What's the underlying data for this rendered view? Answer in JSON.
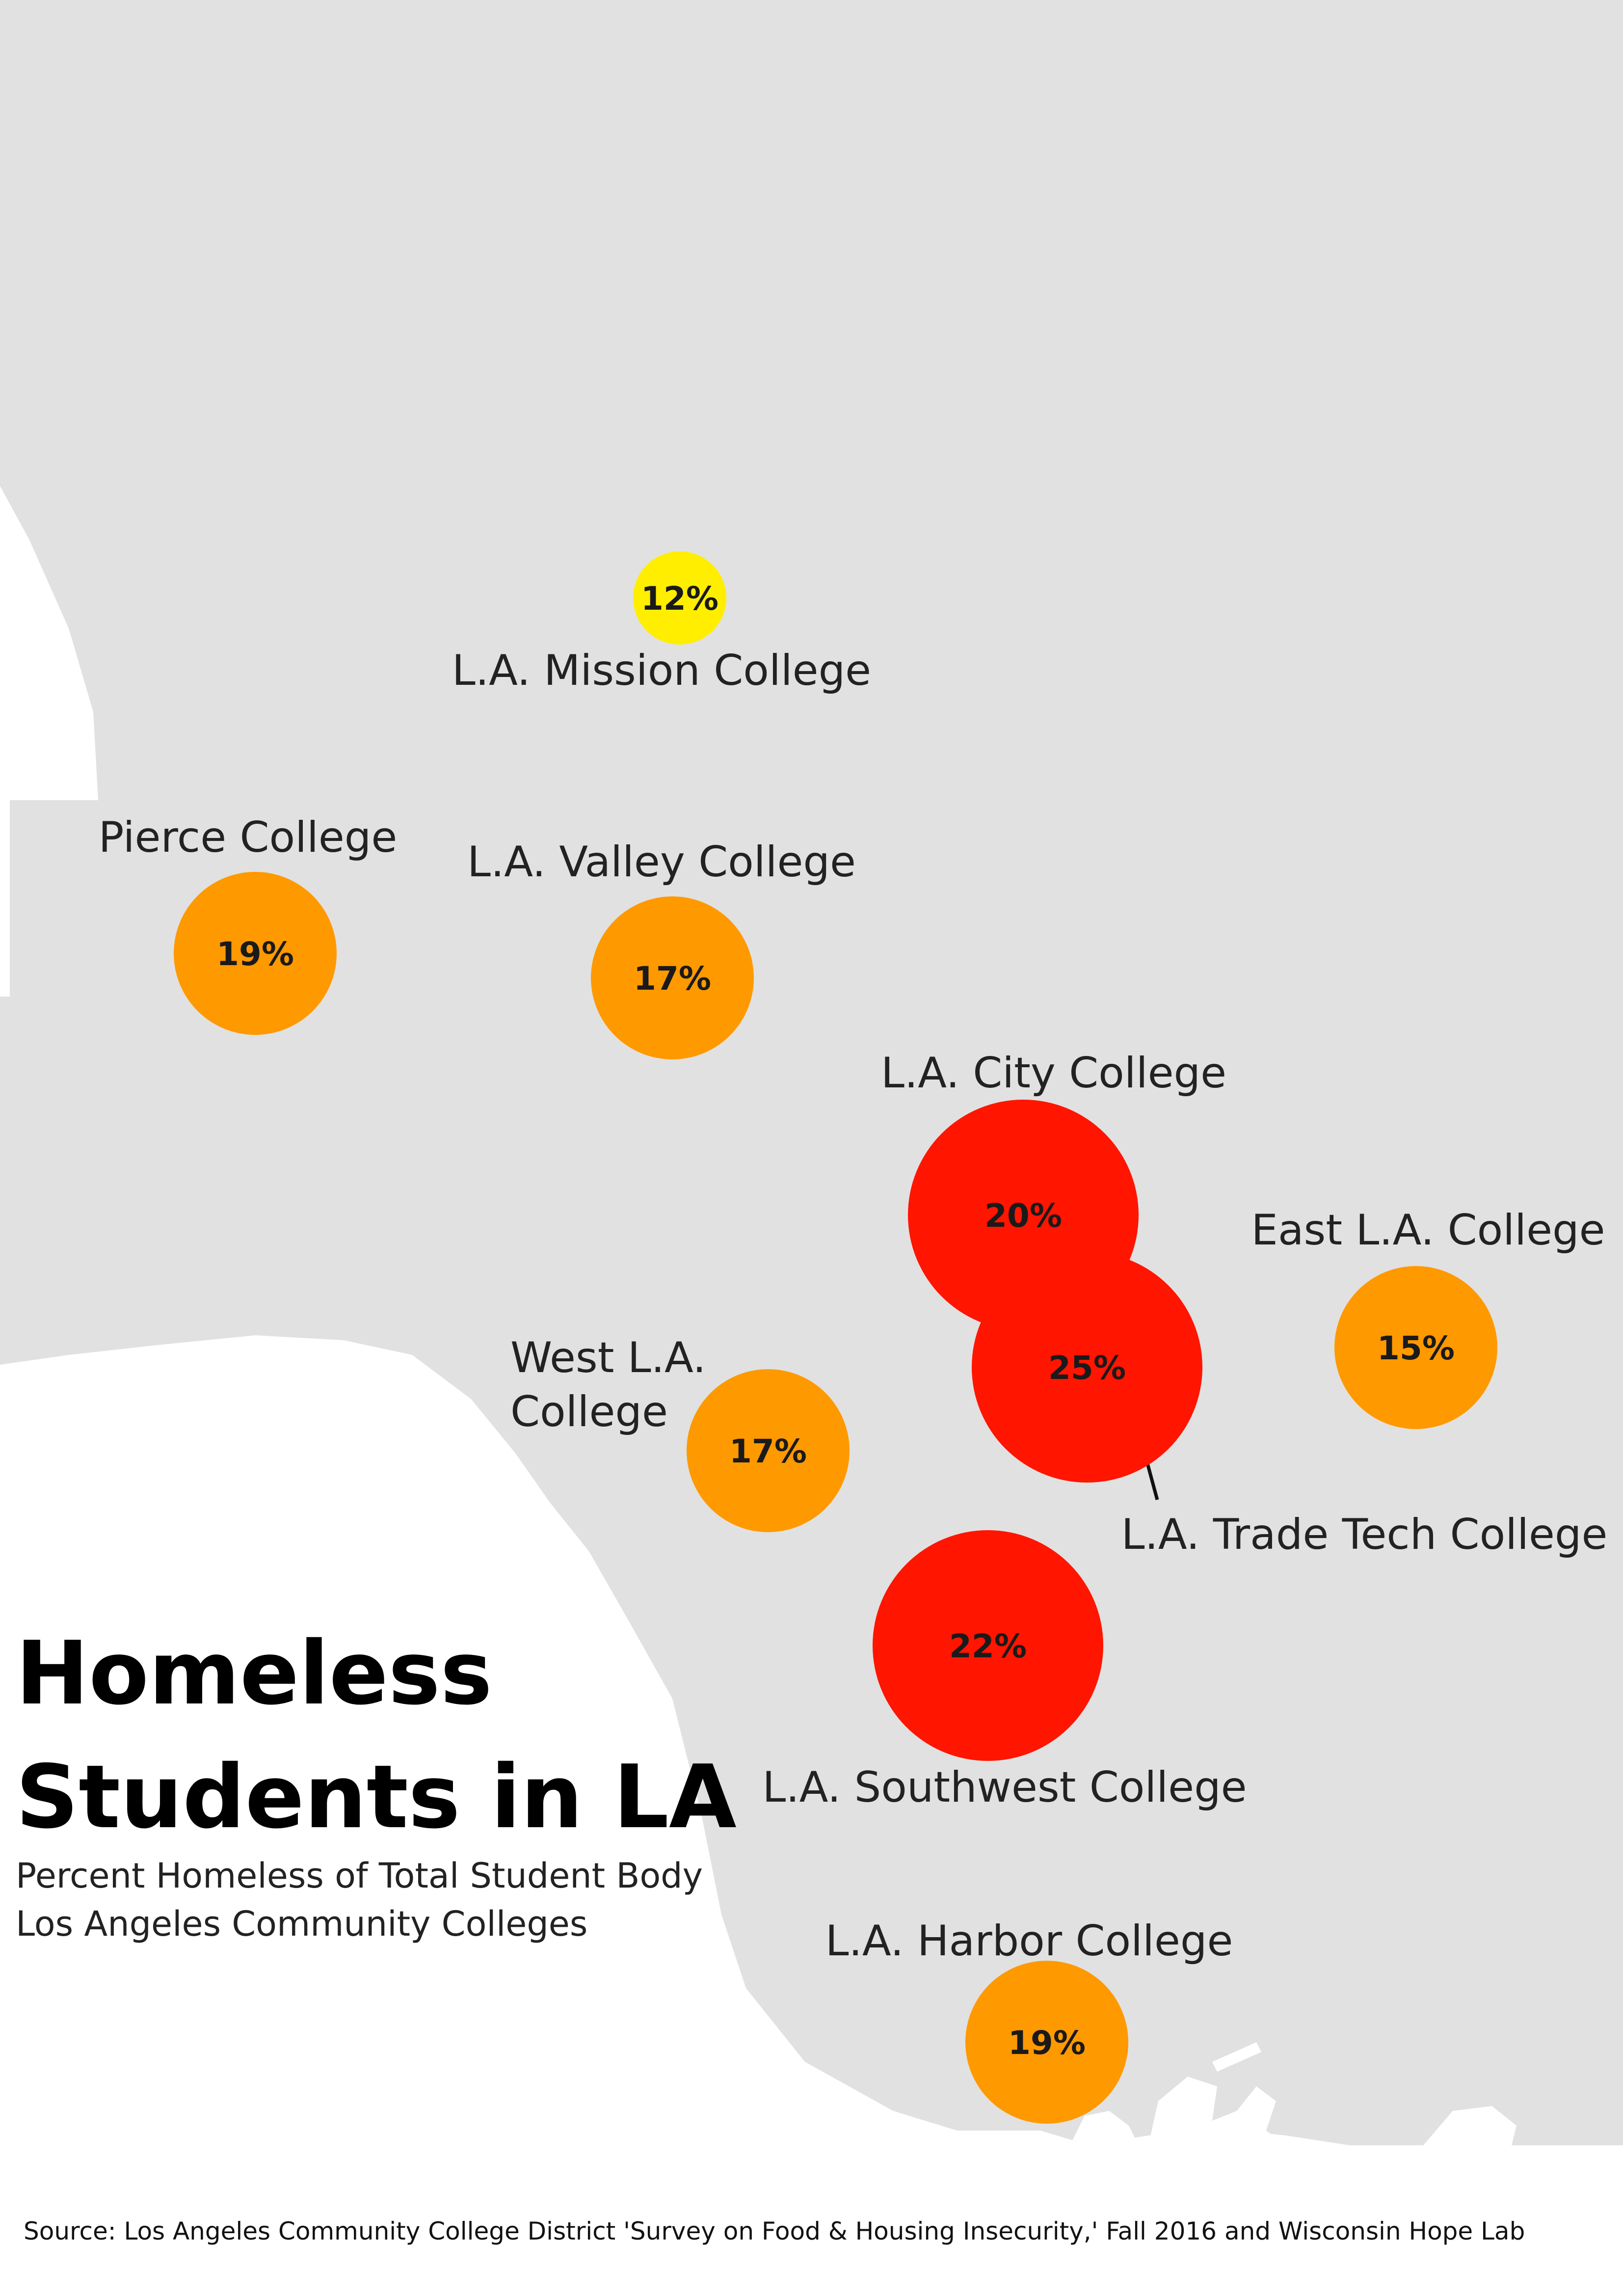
{
  "title_lines": [
    "Homeless",
    "Students in LA"
  ],
  "subtitle_lines": [
    "Percent Homeless of Total Student Body",
    "Los Angeles Community Colleges"
  ],
  "source": "Source: Los Angeles Community College District 'Survey on Food & Housing Insecurity,' Fall 2016  and Wisconsin Hope Lab",
  "colors": {
    "land": "#e1e1e1",
    "water": "#ffffff",
    "low": "#ffee00",
    "mid": "#ff9900",
    "high": "#ff1500"
  },
  "colleges": [
    {
      "name_lines": [
        "L.A. Mission College"
      ],
      "percent": 12,
      "value_label": "12%",
      "tier": "low"
    },
    {
      "name_lines": [
        "Pierce College"
      ],
      "percent": 19,
      "value_label": "19%",
      "tier": "mid"
    },
    {
      "name_lines": [
        "L.A. Valley College"
      ],
      "percent": 17,
      "value_label": "17%",
      "tier": "mid"
    },
    {
      "name_lines": [
        "L.A. City College"
      ],
      "percent": 20,
      "value_label": "20%",
      "tier": "high"
    },
    {
      "name_lines": [
        "East L.A. College"
      ],
      "percent": 15,
      "value_label": "15%",
      "tier": "mid"
    },
    {
      "name_lines": [
        "West L.A.",
        "College"
      ],
      "percent": 17,
      "value_label": "17%",
      "tier": "mid"
    },
    {
      "name_lines": [
        "L.A. Trade Tech College"
      ],
      "percent": 25,
      "value_label": "25%",
      "tier": "high"
    },
    {
      "name_lines": [
        "L.A. Southwest College"
      ],
      "percent": 22,
      "value_label": "22%",
      "tier": "high"
    },
    {
      "name_lines": [
        "L.A. Harbor College"
      ],
      "percent": 19,
      "value_label": "19%",
      "tier": "mid"
    }
  ]
}
